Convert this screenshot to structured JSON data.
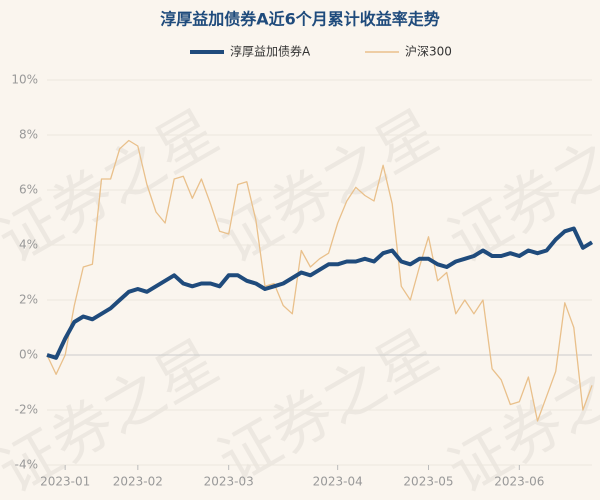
{
  "chart_data": {
    "type": "line",
    "title": "淳厚益加债券A近6个月累计收益率走势",
    "watermark": "证券之星",
    "categories": [
      null,
      null,
      "2023-01",
      null,
      null,
      null,
      null,
      null,
      null,
      null,
      "2023-02",
      null,
      null,
      null,
      null,
      null,
      null,
      null,
      null,
      null,
      "2023-03",
      null,
      null,
      null,
      null,
      null,
      null,
      null,
      null,
      null,
      null,
      null,
      "2023-04",
      null,
      null,
      null,
      null,
      null,
      null,
      null,
      null,
      null,
      "2023-05",
      null,
      null,
      null,
      null,
      null,
      null,
      null,
      null,
      null,
      "2023-06",
      null,
      null,
      null,
      null,
      null,
      null,
      null,
      null
    ],
    "series": [
      {
        "name": "淳厚益加债券A",
        "color": "#1f4b7c",
        "values": [
          0,
          -0.1,
          0.6,
          1.2,
          1.4,
          1.3,
          1.5,
          1.7,
          2.0,
          2.3,
          2.4,
          2.3,
          2.5,
          2.7,
          2.9,
          2.6,
          2.5,
          2.6,
          2.6,
          2.5,
          2.9,
          2.9,
          2.7,
          2.6,
          2.4,
          2.5,
          2.6,
          2.8,
          3.0,
          2.9,
          3.1,
          3.3,
          3.3,
          3.4,
          3.4,
          3.5,
          3.4,
          3.7,
          3.8,
          3.4,
          3.3,
          3.5,
          3.5,
          3.3,
          3.2,
          3.4,
          3.5,
          3.6,
          3.8,
          3.6,
          3.6,
          3.7,
          3.6,
          3.8,
          3.7,
          3.8,
          4.2,
          4.5,
          4.6,
          3.9,
          4.1
        ]
      },
      {
        "name": "沪深300",
        "color": "#e9c08b",
        "values": [
          0,
          -0.7,
          0,
          1.8,
          3.2,
          3.3,
          6.4,
          6.4,
          7.5,
          7.8,
          7.6,
          6.2,
          5.2,
          4.8,
          6.4,
          6.5,
          5.7,
          6.4,
          5.5,
          4.5,
          4.4,
          6.2,
          6.3,
          4.9,
          2.5,
          2.6,
          1.8,
          1.5,
          3.8,
          3.2,
          3.5,
          3.7,
          4.8,
          5.6,
          6.1,
          5.8,
          5.6,
          6.9,
          5.5,
          2.5,
          2.0,
          3.2,
          4.3,
          2.7,
          3.0,
          1.5,
          2.0,
          1.5,
          2.0,
          -0.5,
          -0.9,
          -1.8,
          -1.7,
          -0.8,
          -2.4,
          -1.5,
          -0.6,
          1.9,
          1.0,
          -2.0,
          -1.1
        ]
      }
    ],
    "ylim": [
      -4,
      10
    ],
    "yticks": [
      {
        "value": -4,
        "label": "-4%"
      },
      {
        "value": -2,
        "label": "-2%"
      },
      {
        "value": 0,
        "label": "0%"
      },
      {
        "value": 2,
        "label": "2%"
      },
      {
        "value": 4,
        "label": "4%"
      },
      {
        "value": 6,
        "label": "6%"
      },
      {
        "value": 8,
        "label": "8%"
      },
      {
        "value": 10,
        "label": "10%"
      }
    ],
    "grid": true,
    "legend": "top"
  }
}
